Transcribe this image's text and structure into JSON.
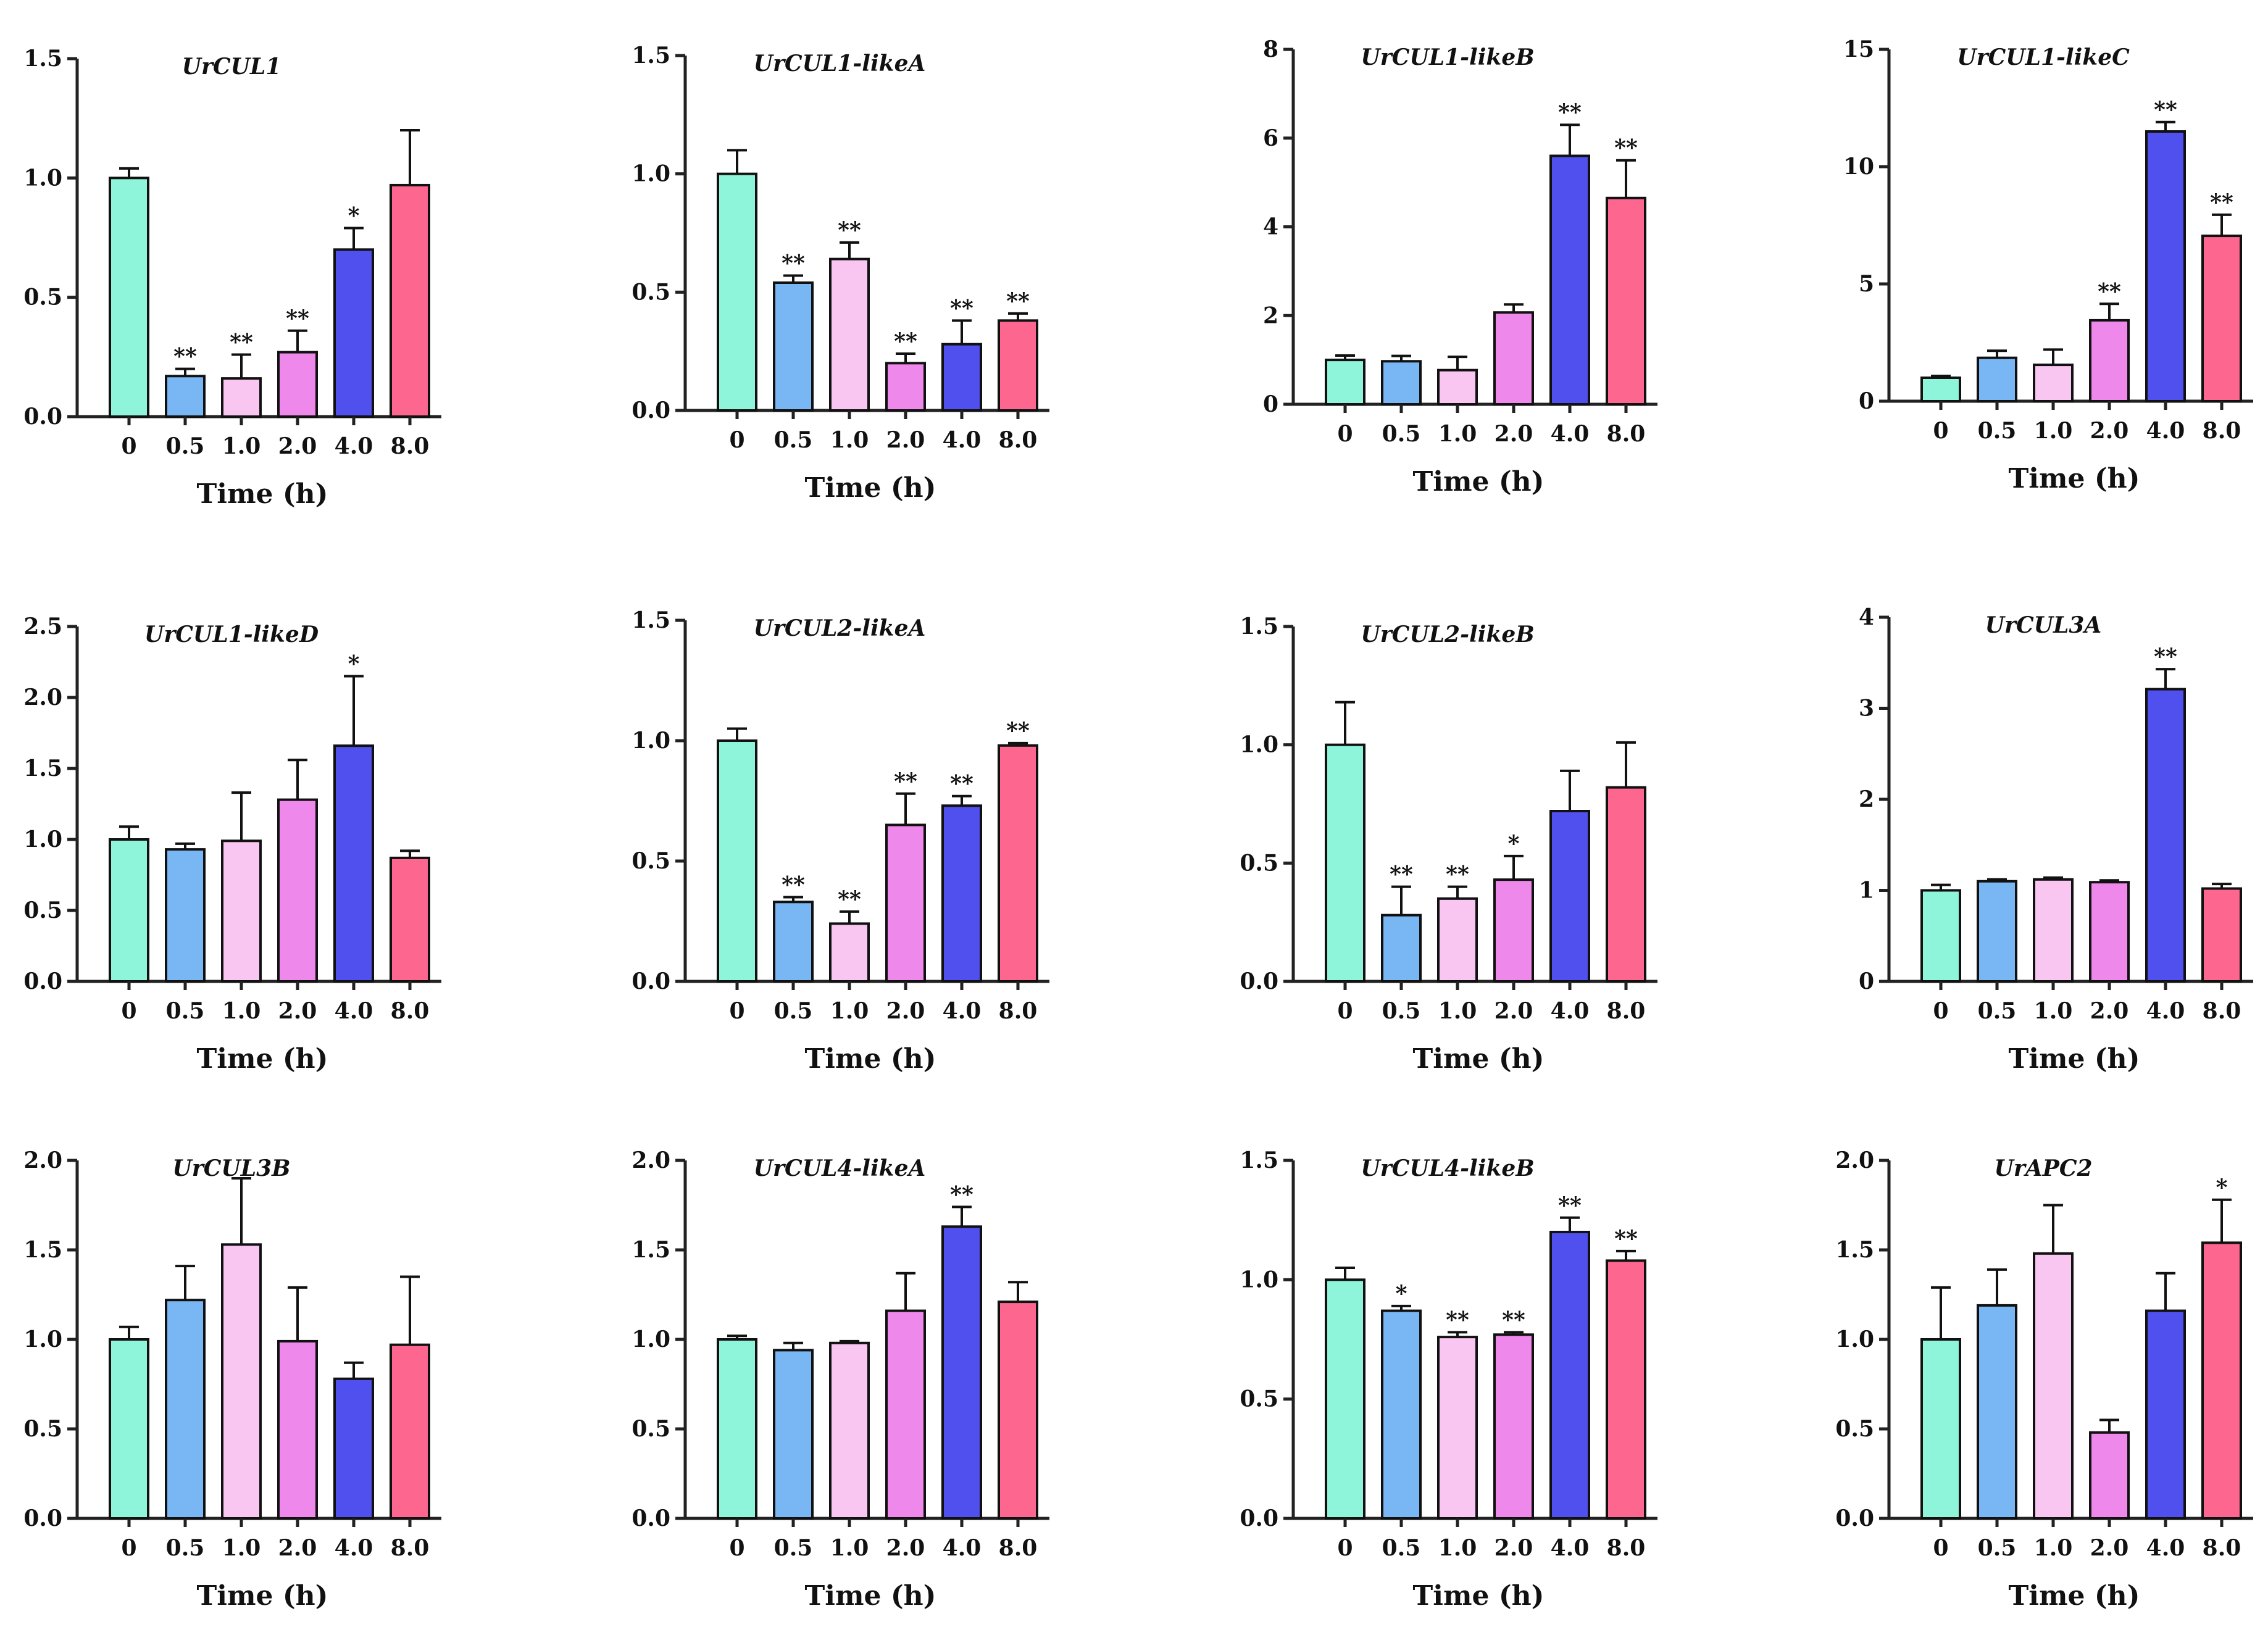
{
  "colors": [
    "#8ff5da",
    "#79b6f4",
    "#f9c6f1",
    "#ee88ea",
    "#5050ee",
    "#fd668e"
  ],
  "chart_data": [
    {
      "type": "bar",
      "title": "UrCUL1",
      "xlabel": "Time (h)",
      "categories": [
        "0",
        "0.5",
        "1.0",
        "2.0",
        "4.0",
        "8.0"
      ],
      "values": [
        1.0,
        0.17,
        0.16,
        0.27,
        0.7,
        0.97
      ],
      "errors": [
        0.04,
        0.03,
        0.1,
        0.09,
        0.09,
        0.23
      ],
      "significance": [
        "",
        "**",
        "**",
        "**",
        "*",
        ""
      ],
      "ylim": [
        0,
        1.5
      ],
      "yticks": [
        "0.0",
        "0.5",
        "1.0",
        "1.5"
      ]
    },
    {
      "type": "bar",
      "title": "UrCUL1-likeA",
      "xlabel": "Time (h)",
      "categories": [
        "0",
        "0.5",
        "1.0",
        "2.0",
        "4.0",
        "8.0"
      ],
      "values": [
        1.0,
        0.54,
        0.64,
        0.2,
        0.28,
        0.38
      ],
      "errors": [
        0.1,
        0.03,
        0.07,
        0.04,
        0.1,
        0.03
      ],
      "significance": [
        "",
        "**",
        "**",
        "**",
        "**",
        "**"
      ],
      "ylim": [
        0,
        1.5
      ],
      "yticks": [
        "0.0",
        "0.5",
        "1.0",
        "1.5"
      ]
    },
    {
      "type": "bar",
      "title": "UrCUL1-likeB",
      "xlabel": "Time (h)",
      "categories": [
        "0",
        "0.5",
        "1.0",
        "2.0",
        "4.0",
        "8.0"
      ],
      "values": [
        1.0,
        0.97,
        0.77,
        2.07,
        5.6,
        4.65
      ],
      "errors": [
        0.1,
        0.12,
        0.3,
        0.18,
        0.7,
        0.85
      ],
      "significance": [
        "",
        "",
        "",
        "",
        "**",
        "**"
      ],
      "ylim": [
        0,
        8
      ],
      "yticks": [
        "0",
        "2",
        "4",
        "6",
        "8"
      ]
    },
    {
      "type": "bar",
      "title": "UrCUL1-likeC",
      "xlabel": "Time (h)",
      "categories": [
        "0",
        "0.5",
        "1.0",
        "2.0",
        "4.0",
        "8.0"
      ],
      "values": [
        1.0,
        1.85,
        1.55,
        3.45,
        11.5,
        7.05
      ],
      "errors": [
        0.08,
        0.3,
        0.65,
        0.7,
        0.4,
        0.9
      ],
      "significance": [
        "",
        "",
        "",
        "**",
        "**",
        "**"
      ],
      "ylim": [
        0,
        15
      ],
      "yticks": [
        "0",
        "5",
        "10",
        "15"
      ]
    },
    {
      "type": "bar",
      "title": "UrCUL1-likeD",
      "xlabel": "Time (h)",
      "categories": [
        "0",
        "0.5",
        "1.0",
        "2.0",
        "4.0",
        "8.0"
      ],
      "values": [
        1.0,
        0.93,
        0.99,
        1.28,
        1.66,
        0.87
      ],
      "errors": [
        0.09,
        0.04,
        0.34,
        0.28,
        0.49,
        0.05
      ],
      "significance": [
        "",
        "",
        "",
        "",
        "*",
        ""
      ],
      "ylim": [
        0,
        2.5
      ],
      "yticks": [
        "0.0",
        "0.5",
        "1.0",
        "1.5",
        "2.0",
        "2.5"
      ]
    },
    {
      "type": "bar",
      "title": "UrCUL2-likeA",
      "xlabel": "Time (h)",
      "categories": [
        "0",
        "0.5",
        "1.0",
        "2.0",
        "4.0",
        "8.0"
      ],
      "values": [
        1.0,
        0.33,
        0.24,
        0.65,
        0.73,
        0.98
      ],
      "errors": [
        0.05,
        0.02,
        0.05,
        0.13,
        0.04,
        0.01
      ],
      "significance": [
        "",
        "**",
        "**",
        "**",
        "**",
        "**"
      ],
      "ylim": [
        0,
        1.5
      ],
      "yticks": [
        "0.0",
        "0.5",
        "1.0",
        "1.5"
      ]
    },
    {
      "type": "bar",
      "title": "UrCUL2-likeB",
      "xlabel": "Time (h)",
      "categories": [
        "0",
        "0.5",
        "1.0",
        "2.0",
        "4.0",
        "8.0"
      ],
      "values": [
        1.0,
        0.28,
        0.35,
        0.43,
        0.72,
        0.82
      ],
      "errors": [
        0.18,
        0.12,
        0.05,
        0.1,
        0.17,
        0.19
      ],
      "significance": [
        "",
        "**",
        "**",
        "*",
        "",
        ""
      ],
      "ylim": [
        0,
        1.5
      ],
      "yticks": [
        "0.0",
        "0.5",
        "1.0",
        "1.5"
      ]
    },
    {
      "type": "bar",
      "title": "UrCUL3A",
      "xlabel": "Time (h)",
      "categories": [
        "0",
        "0.5",
        "1.0",
        "2.0",
        "4.0",
        "8.0"
      ],
      "values": [
        1.0,
        1.1,
        1.12,
        1.09,
        3.21,
        1.02
      ],
      "errors": [
        0.06,
        0.02,
        0.02,
        0.02,
        0.22,
        0.05
      ],
      "significance": [
        "",
        "",
        "",
        "",
        "**",
        ""
      ],
      "ylim": [
        0,
        4
      ],
      "yticks": [
        "0",
        "1",
        "2",
        "3",
        "4"
      ]
    },
    {
      "type": "bar",
      "title": "UrCUL3B",
      "xlabel": "Time (h)",
      "categories": [
        "0",
        "0.5",
        "1.0",
        "2.0",
        "4.0",
        "8.0"
      ],
      "values": [
        1.0,
        1.22,
        1.53,
        0.99,
        0.78,
        0.97
      ],
      "errors": [
        0.07,
        0.19,
        0.37,
        0.3,
        0.09,
        0.38
      ],
      "significance": [
        "",
        "",
        "",
        "",
        "",
        ""
      ],
      "ylim": [
        0,
        2.0
      ],
      "yticks": [
        "0.0",
        "0.5",
        "1.0",
        "1.5",
        "2.0"
      ]
    },
    {
      "type": "bar",
      "title": "UrCUL4-likeA",
      "xlabel": "Time (h)",
      "categories": [
        "0",
        "0.5",
        "1.0",
        "2.0",
        "4.0",
        "8.0"
      ],
      "values": [
        1.0,
        0.94,
        0.98,
        1.16,
        1.63,
        1.21
      ],
      "errors": [
        0.02,
        0.04,
        0.01,
        0.21,
        0.11,
        0.11
      ],
      "significance": [
        "",
        "",
        "",
        "",
        "**",
        ""
      ],
      "ylim": [
        0,
        2.0
      ],
      "yticks": [
        "0.0",
        "0.5",
        "1.0",
        "1.5",
        "2.0"
      ]
    },
    {
      "type": "bar",
      "title": "UrCUL4-likeB",
      "xlabel": "Time (h)",
      "categories": [
        "0",
        "0.5",
        "1.0",
        "2.0",
        "4.0",
        "8.0"
      ],
      "values": [
        1.0,
        0.87,
        0.76,
        0.77,
        1.2,
        1.08
      ],
      "errors": [
        0.05,
        0.02,
        0.02,
        0.01,
        0.06,
        0.04
      ],
      "significance": [
        "",
        "*",
        "**",
        "**",
        "**",
        "**"
      ],
      "ylim": [
        0,
        1.5
      ],
      "yticks": [
        "0.0",
        "0.5",
        "1.0",
        "1.5"
      ]
    },
    {
      "type": "bar",
      "title": "UrAPC2",
      "xlabel": "Time (h)",
      "categories": [
        "0",
        "0.5",
        "1.0",
        "2.0",
        "4.0",
        "8.0"
      ],
      "values": [
        1.0,
        1.19,
        1.48,
        0.48,
        1.16,
        1.54
      ],
      "errors": [
        0.29,
        0.2,
        0.27,
        0.07,
        0.21,
        0.24
      ],
      "significance": [
        "",
        "",
        "",
        "",
        "",
        "*"
      ],
      "ylim": [
        0,
        2.0
      ],
      "yticks": [
        "0.0",
        "0.5",
        "1.0",
        "1.5",
        "2.0"
      ]
    }
  ]
}
